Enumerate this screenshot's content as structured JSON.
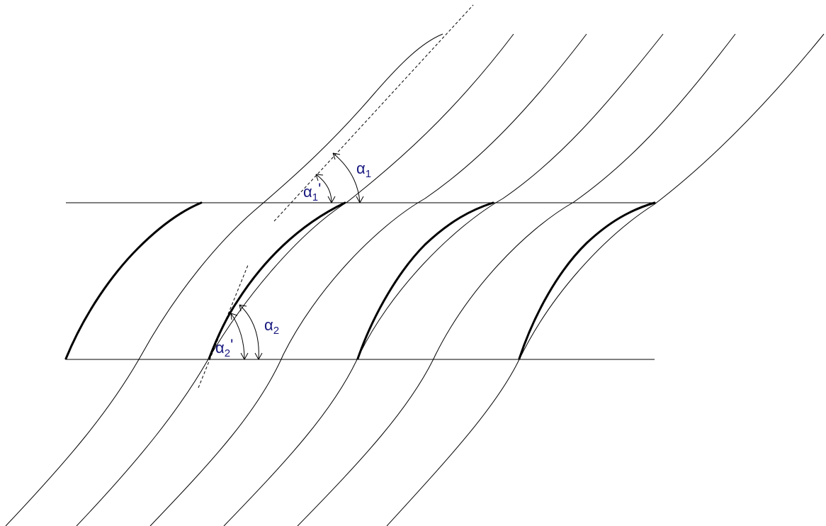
{
  "colors": {
    "line": "#000000",
    "label": "#1a1a80",
    "background": "#ffffff"
  },
  "labels": {
    "alpha1_symbol": "α",
    "alpha1_sub": "1",
    "alpha1p_symbol": "α",
    "alpha1p_sub": "1",
    "alpha1p_prime": "'",
    "alpha2_symbol": "α",
    "alpha2_sub": "2",
    "alpha2p_symbol": "α",
    "alpha2p_sub": "2",
    "alpha2p_prime": "'"
  }
}
